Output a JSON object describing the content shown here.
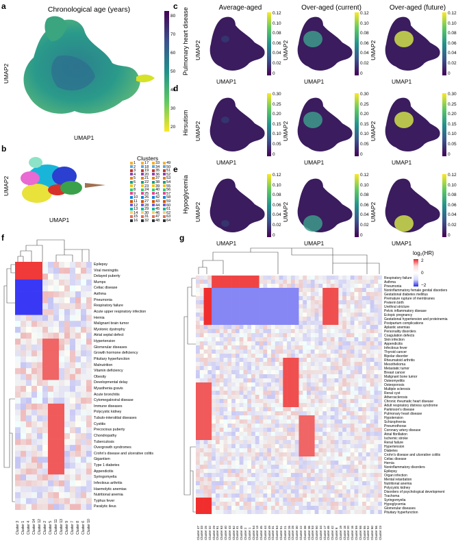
{
  "panels": {
    "a": {
      "letter": "a",
      "title": "Chronological age (years)",
      "xlabel": "UMAP1",
      "ylabel": "UMAP2",
      "colorbar_ticks": [
        "80",
        "70",
        "60",
        "50",
        "40",
        "30",
        "20"
      ]
    },
    "b": {
      "letter": "b",
      "xlabel": "UMAP1",
      "ylabel": "UMAP2",
      "legend_title": "Clusters",
      "clusters": [
        "1",
        "2",
        "3",
        "4",
        "5",
        "6",
        "7",
        "8",
        "9",
        "10",
        "11",
        "12",
        "13",
        "14",
        "15",
        "16",
        "17",
        "18",
        "19",
        "20",
        "21",
        "22",
        "23",
        "24",
        "25",
        "26",
        "27",
        "28",
        "29",
        "30",
        "31",
        "32",
        "33",
        "34",
        "35",
        "36",
        "37",
        "38",
        "39",
        "40",
        "41",
        "42",
        "43",
        "44",
        "45",
        "46",
        "47",
        "48",
        "49",
        "50",
        "51",
        "52",
        "53",
        "54",
        "55",
        "56",
        "57",
        "58",
        "59",
        "60",
        "61",
        "62",
        "63",
        "64"
      ]
    },
    "c": {
      "letter": "c",
      "row_label": "Pulmonary heart disease",
      "ticks": [
        "0.12",
        "0.10",
        "0.08",
        "0.06",
        "0.04",
        "0.02",
        "0"
      ]
    },
    "d": {
      "letter": "d",
      "row_label": "Hirsutism",
      "ticks": [
        "0.30",
        "0.25",
        "0.20",
        "0.15",
        "0.10",
        "0.05",
        "0"
      ]
    },
    "e": {
      "letter": "e",
      "row_label": "Hypoglycemia",
      "ticks": [
        "0.12",
        "0.10",
        "0.08",
        "0.06",
        "0.04",
        "0.02",
        "0"
      ]
    },
    "col_titles": [
      "Average-aged",
      "Over-aged (current)",
      "Over-aged (future)"
    ],
    "umap_xlabel": "UMAP1",
    "umap_ylabel": "UMAP2",
    "f": {
      "letter": "f",
      "diseases": [
        "Epilepsy",
        "Viral meningitis",
        "Delayed puberty",
        "Mumps",
        "Celiac disease",
        "Asthma",
        "Pneumonia",
        "Respiratory failure",
        "Acute upper respiratory infection",
        "Hernia",
        "Malignant brain tumor",
        "Myotonic dystrophy",
        "Atrial septal defect",
        "Hypertension",
        "Glomerular diseases",
        "Growth hormone deficiency",
        "Pituitary hyperfunction",
        "Malnutrition",
        "Vitamin deficiency",
        "Obesity",
        "Developmental delay",
        "Myasthenia gravis",
        "Acute bronchitis",
        "Cytomegaloviral disease",
        "Immune diseases",
        "Polycystic kidney",
        "Tubulo-interstitial diseases",
        "Cystitis",
        "Precocious puberty",
        "Chondropathy",
        "Tuberculosis",
        "Overgrowth syndromes",
        "Crohn's disease and ulcerative colitis",
        "Gigantism",
        "Type 1 diabetes",
        "Appendicitis",
        "Syringomyelia",
        "Infectious arthritis",
        "Haemolytic anemias",
        "Nutritional anemia",
        "Typhus fever",
        "Paralytic ileus"
      ],
      "clusters": [
        "Cluster 3",
        "Cluster 1",
        "Cluster 4",
        "Cluster 14",
        "Cluster 12",
        "Cluster 2",
        "Cluster 5",
        "Cluster 11",
        "Cluster 13",
        "Cluster 9",
        "Cluster 7",
        "Cluster 8",
        "Cluster 6",
        "Cluster 10"
      ]
    },
    "g": {
      "letter": "g",
      "legend_title": "log₂(HR)",
      "legend_ticks": [
        "2",
        "0",
        "−2"
      ],
      "diseases": [
        "Respiratory failure",
        "Asthma",
        "Pneumonia",
        "Noninflammatory female genital disorders",
        "Gestational diabetes mellitus",
        "Premature rupture of membranes",
        "Preterm birth",
        "Urethral stricture",
        "Pelvic inflammatory disease",
        "Ectopic pregnancy",
        "Gestational hypertension and proteinemia",
        "Postpartum complications",
        "Aplastic anemias",
        "Personality disorders",
        "Coagulation defects",
        "Skin infection",
        "Appendicitis",
        "Infectious fever",
        "Thyroid cancer",
        "Bipolar disorder",
        "Rheumatoid arthritis",
        "Mesothelioma",
        "Metastatic tumor",
        "Breast cancer",
        "Malignant bone tumor",
        "Osteomyelitis",
        "Osteoporosis",
        "Multiple sclerosis",
        "Renal cyst",
        "Atherosclerosis",
        "Chronic rheumatic heart disease",
        "Adult respiratory distress syndrome",
        "Parkinson's disease",
        "Pulmonary heart disease",
        "Hypotension",
        "Schizophrenia",
        "Pneumothorax",
        "Coronary artery disease",
        "Atrial fibrillation",
        "Ischemic stroke",
        "Renal failure",
        "Hypertension",
        "Diabetes",
        "Crohn's disease and ulcerative colitis",
        "Celiac disease",
        "Hernia",
        "Noninflammatory disorders",
        "Epilepsy",
        "Organ infection",
        "Mental retardation",
        "Nutritional anemia",
        "Polycystic kidney",
        "Disorders of psychological development",
        "Trachoma",
        "Syringomyelia",
        "Hypoglycemia",
        "Glomerular diseases",
        "Pituitary hyperfunction"
      ],
      "clusters": [
        "Cluster 47",
        "Cluster 33",
        "Cluster 25",
        "Cluster 32",
        "Cluster 29",
        "Cluster 61",
        "Cluster 63",
        "Cluster 40",
        "Cluster 43",
        "Cluster 62",
        "Cluster 41",
        "Cluster 48",
        "Cluster 2",
        "Cluster 1",
        "Cluster 54",
        "Cluster 13",
        "Cluster 45",
        "Cluster 44",
        "Cluster 49",
        "Cluster 31",
        "Cluster 64",
        "Cluster 51",
        "Cluster 21",
        "Cluster 26",
        "Cluster 28",
        "Cluster 30",
        "Cluster 22",
        "Cluster 38",
        "Cluster 36",
        "Cluster 53",
        "Cluster 50",
        "Cluster 34",
        "Cluster 17",
        "Cluster 46",
        "Cluster 42",
        "Cluster 8",
        "Cluster 19",
        "Cluster 18",
        "Cluster 20",
        "Cluster 16",
        "Cluster 59",
        "Cluster 58",
        "Cluster 55",
        "Cluster 52",
        "Cluster 60",
        "Cluster 56",
        "Cluster 23"
      ]
    }
  }
}
